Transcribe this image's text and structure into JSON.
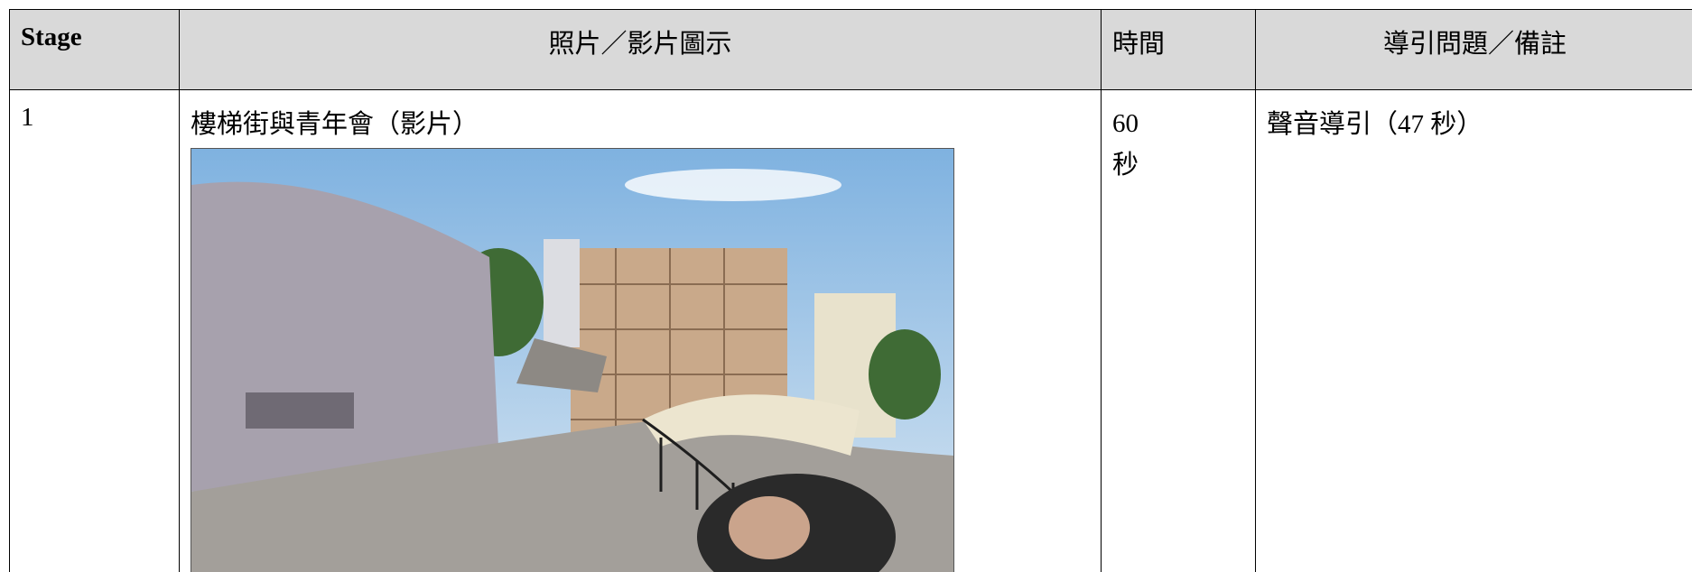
{
  "table": {
    "header": [
      "Stage",
      "照片／影片圖示",
      "時間",
      "導引問題／備註"
    ],
    "rows": [
      [
        "1",
        "樓梯街與青年會（影片）",
        "60\n秒",
        "聲音導引（47 秒）"
      ]
    ]
  }
}
